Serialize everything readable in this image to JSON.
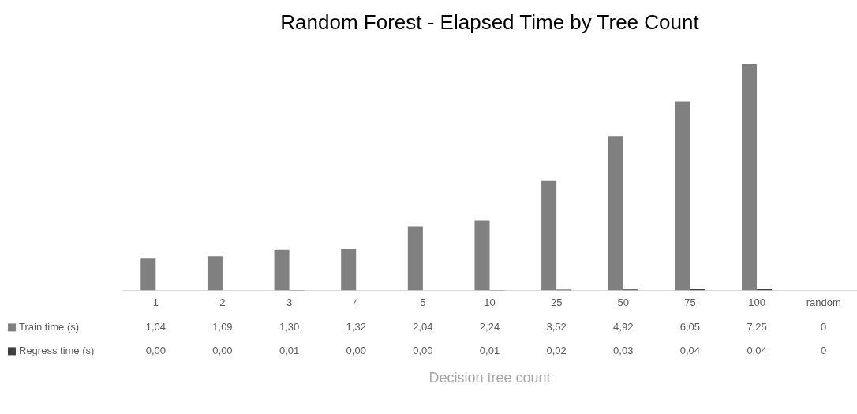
{
  "chart_data": {
    "type": "bar",
    "title": "Random Forest - Elapsed Time by Tree Count",
    "xlabel": "Decision tree count",
    "categories": [
      "1",
      "2",
      "3",
      "4",
      "5",
      "10",
      "25",
      "50",
      "75",
      "100",
      "random"
    ],
    "series": [
      {
        "name": "Train time (s)",
        "color": "#808080",
        "values": [
          1.04,
          1.09,
          1.3,
          1.32,
          2.04,
          2.24,
          3.52,
          4.92,
          6.05,
          7.25,
          0
        ],
        "value_labels": [
          "1,04",
          "1,09",
          "1,30",
          "1,32",
          "2,04",
          "2,24",
          "3,52",
          "4,92",
          "6,05",
          "7,25",
          "0"
        ]
      },
      {
        "name": "Regress time (s)",
        "color": "#404040",
        "values": [
          0.0,
          0.0,
          0.01,
          0.0,
          0.0,
          0.01,
          0.02,
          0.03,
          0.04,
          0.04,
          0
        ],
        "value_labels": [
          "0,00",
          "0,00",
          "0,01",
          "0,00",
          "0,00",
          "0,01",
          "0,02",
          "0,03",
          "0,04",
          "0,04",
          "0"
        ]
      }
    ],
    "legend": "bottom",
    "grid": false
  }
}
